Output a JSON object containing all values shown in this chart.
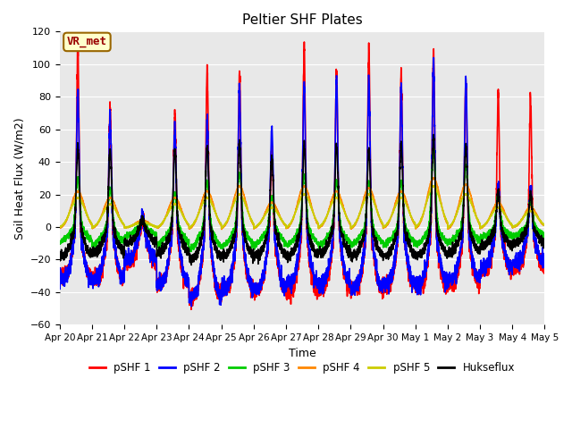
{
  "title": "Peltier SHF Plates",
  "xlabel": "Time",
  "ylabel": "Soil Heat Flux (W/m2)",
  "ylim": [
    -60,
    120
  ],
  "yticks": [
    -60,
    -40,
    -20,
    0,
    20,
    40,
    60,
    80,
    100,
    120
  ],
  "bg_color": "#e8e8e8",
  "fig_color": "#ffffff",
  "annotation_text": "VR_met",
  "annotation_bg": "#ffffcc",
  "annotation_border": "#996600",
  "lines": [
    {
      "label": "pSHF 1",
      "color": "#ff0000",
      "lw": 1.2
    },
    {
      "label": "pSHF 2",
      "color": "#0000ff",
      "lw": 1.2
    },
    {
      "label": "pSHF 3",
      "color": "#00cc00",
      "lw": 1.2
    },
    {
      "label": "pSHF 4",
      "color": "#ff8800",
      "lw": 1.2
    },
    {
      "label": "pSHF 5",
      "color": "#cccc00",
      "lw": 1.2
    },
    {
      "label": "Hukseflux",
      "color": "#000000",
      "lw": 1.2
    }
  ],
  "n_days": 15,
  "points_per_day": 288,
  "date_labels": [
    "Apr 20",
    "Apr 21",
    "Apr 22",
    "Apr 23",
    "Apr 24",
    "Apr 25",
    "Apr 26",
    "Apr 27",
    "Apr 28",
    "Apr 29",
    "Apr 30",
    "May 1",
    "May 2",
    "May 3",
    "May 4",
    "May 5"
  ],
  "peaks_pSHF1": [
    110,
    75,
    6,
    70,
    97,
    95,
    50,
    110,
    95,
    110,
    95,
    107,
    90,
    82,
    80
  ],
  "peaks_pSHF2": [
    85,
    68,
    6,
    60,
    65,
    85,
    62,
    88,
    90,
    90,
    85,
    100,
    92,
    26,
    25
  ],
  "peaks_pSHF3": [
    30,
    22,
    4,
    20,
    28,
    33,
    18,
    32,
    28,
    28,
    28,
    48,
    38,
    20,
    16
  ],
  "peaks_pSHF4": [
    22,
    18,
    4,
    18,
    22,
    25,
    15,
    25,
    22,
    24,
    22,
    30,
    26,
    15,
    12
  ],
  "peaks_pSHF5": [
    18,
    14,
    3,
    14,
    18,
    20,
    12,
    20,
    18,
    20,
    18,
    25,
    20,
    12,
    10
  ],
  "peaks_Huk": [
    50,
    48,
    5,
    48,
    50,
    52,
    42,
    50,
    50,
    48,
    50,
    55,
    50,
    22,
    20
  ],
  "troughs_pSHF1": [
    -30,
    -32,
    -22,
    -35,
    -43,
    -38,
    -38,
    -40,
    -38,
    -38,
    -36,
    -37,
    -35,
    -27,
    -24
  ],
  "troughs_pSHF2": [
    -32,
    -32,
    -20,
    -35,
    -43,
    -38,
    -38,
    -35,
    -35,
    -38,
    -35,
    -35,
    -32,
    -25,
    -22
  ],
  "troughs_pSHF3": [
    -10,
    -12,
    -6,
    -12,
    -15,
    -13,
    -12,
    -12,
    -12,
    -12,
    -12,
    -12,
    -10,
    -7,
    -6
  ],
  "troughs_pSHF4": [
    -2,
    -2,
    -1,
    -2,
    -3,
    -3,
    -2,
    -3,
    -2,
    -3,
    -2,
    -3,
    -3,
    -2,
    -1
  ],
  "troughs_pSHF5": [
    -2,
    -2,
    -1,
    -2,
    -3,
    -3,
    -2,
    -3,
    -2,
    -3,
    -2,
    -3,
    -3,
    -2,
    -1
  ],
  "troughs_Huk": [
    -18,
    -16,
    -10,
    -16,
    -20,
    -18,
    -18,
    -18,
    -16,
    -18,
    -18,
    -18,
    -16,
    -12,
    -10
  ],
  "peak_sharpness_sharp": 0.04,
  "peak_sharpness_broad": 0.18,
  "peak_hour": 13.5,
  "trough_noise_sharp": 2.0,
  "trough_noise_broad": 0.3
}
